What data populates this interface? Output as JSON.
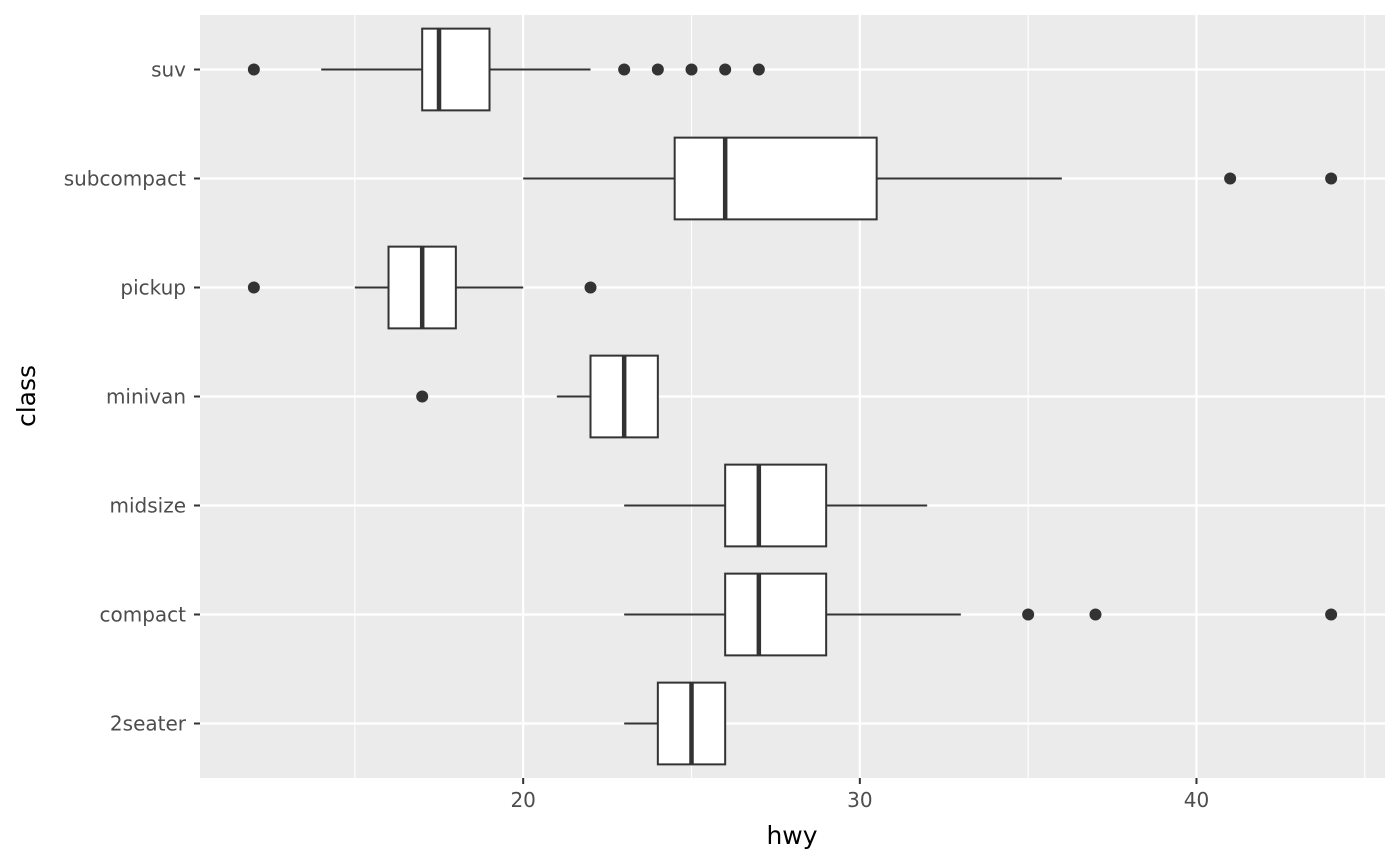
{
  "chart_data": {
    "type": "boxplot",
    "orientation": "horizontal",
    "xlabel": "hwy",
    "ylabel": "class",
    "xlim": [
      10.4,
      45.6
    ],
    "x_ticks": [
      20,
      30,
      40
    ],
    "x_minor_ticks": [
      15,
      25,
      35,
      45
    ],
    "grid": true,
    "colors": {
      "panel": "#ebebeb",
      "grid": "#ffffff",
      "box_fill": "#ffffff",
      "stroke": "#333333",
      "axis_text": "#4d4d4d"
    },
    "categories": [
      "2seater",
      "compact",
      "midsize",
      "minivan",
      "pickup",
      "subcompact",
      "suv"
    ],
    "boxes": [
      {
        "category": "2seater",
        "whisker_low": 23,
        "q1": 24,
        "median": 25,
        "q3": 26,
        "whisker_high": 26,
        "outliers": []
      },
      {
        "category": "compact",
        "whisker_low": 23,
        "q1": 26,
        "median": 27,
        "q3": 29,
        "whisker_high": 33,
        "outliers": [
          35,
          37,
          44
        ]
      },
      {
        "category": "midsize",
        "whisker_low": 23,
        "q1": 26,
        "median": 27,
        "q3": 29,
        "whisker_high": 32,
        "outliers": []
      },
      {
        "category": "minivan",
        "whisker_low": 21,
        "q1": 22,
        "median": 23,
        "q3": 24,
        "whisker_high": 24,
        "outliers": [
          17
        ]
      },
      {
        "category": "pickup",
        "whisker_low": 15,
        "q1": 16,
        "median": 17,
        "q3": 18,
        "whisker_high": 20,
        "outliers": [
          12,
          22
        ]
      },
      {
        "category": "subcompact",
        "whisker_low": 20,
        "q1": 24.5,
        "median": 26,
        "q3": 30.5,
        "whisker_high": 36,
        "outliers": [
          41,
          44
        ]
      },
      {
        "category": "suv",
        "whisker_low": 14,
        "q1": 17,
        "median": 17.5,
        "q3": 19,
        "whisker_high": 22,
        "outliers": [
          12,
          23,
          24,
          25,
          26,
          27
        ]
      }
    ]
  }
}
